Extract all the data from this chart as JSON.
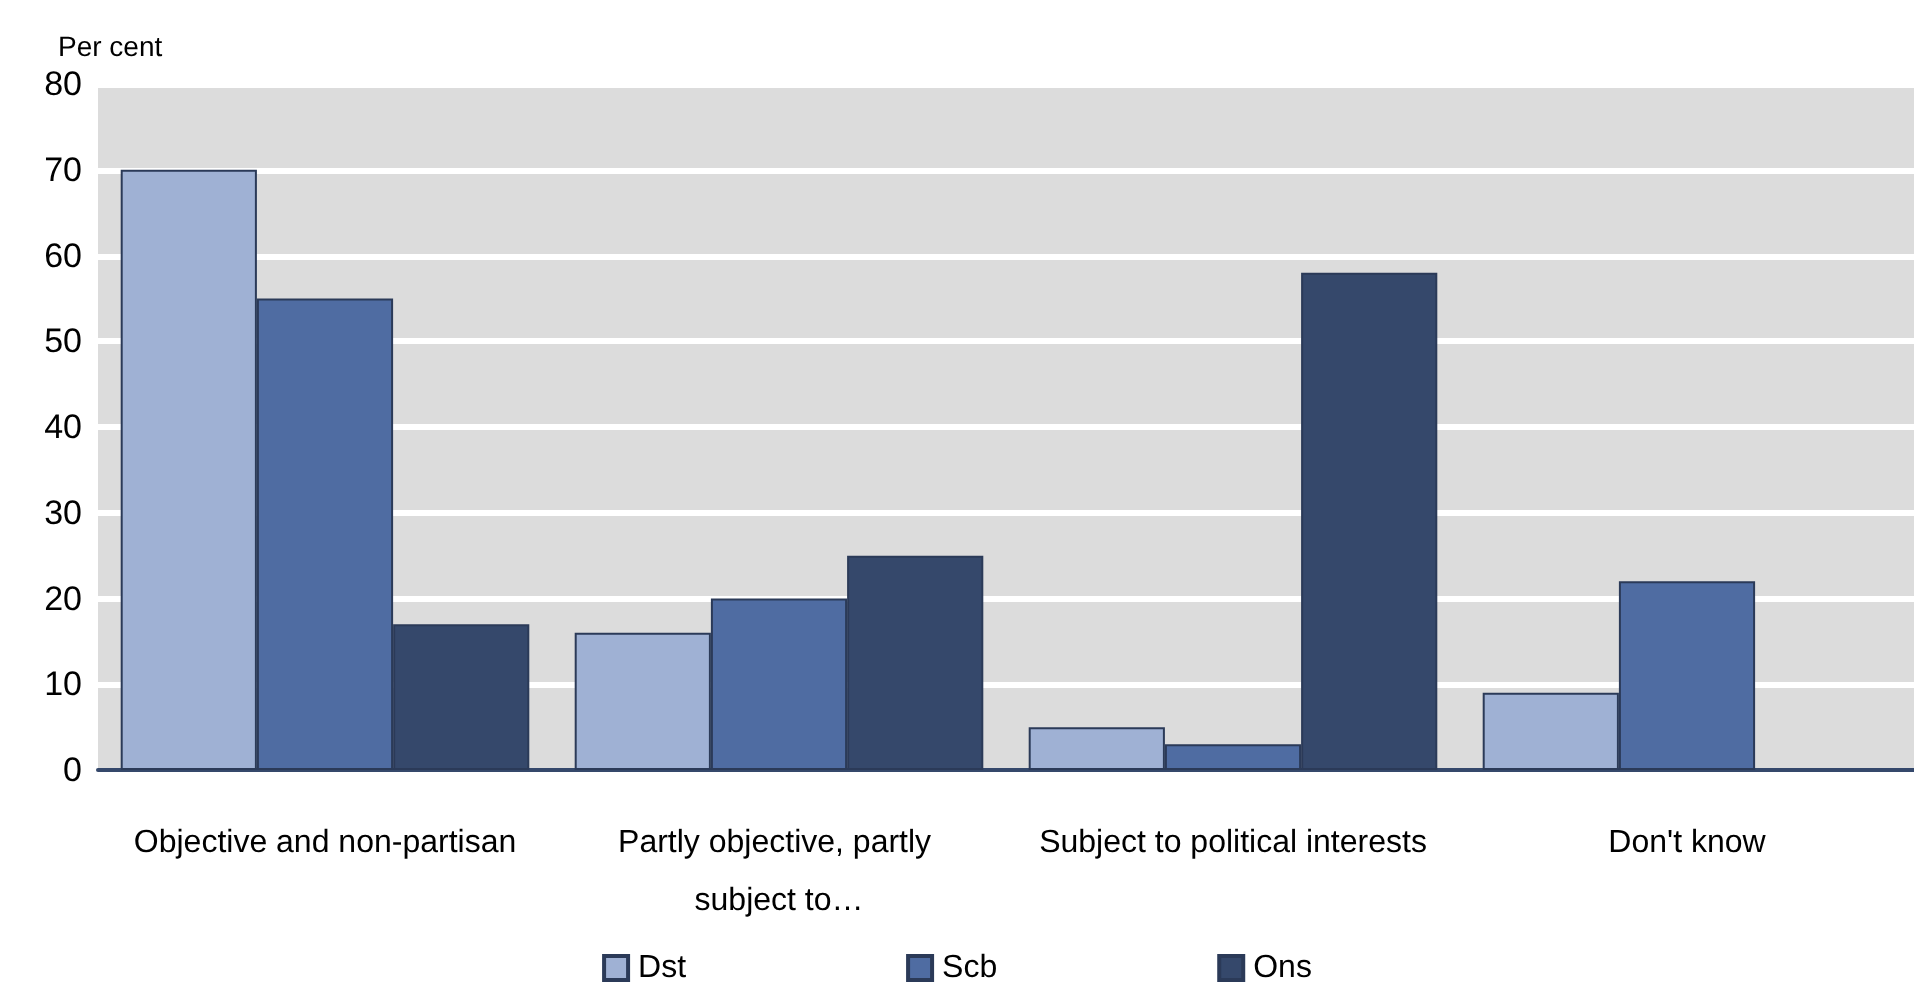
{
  "chart_data": {
    "type": "bar",
    "ylabel": "Per cent",
    "categories": [
      "Objective and non-partisan",
      "Partly objective, partly subject to…",
      "Subject to political interests",
      "Don't know"
    ],
    "series": [
      {
        "name": "Dst",
        "color": "#9fb1d4",
        "values": [
          70,
          16,
          5,
          9
        ]
      },
      {
        "name": "Scb",
        "color": "#4f6ca2",
        "values": [
          55,
          20,
          3,
          22
        ]
      },
      {
        "name": "Ons",
        "color": "#35486b",
        "values": [
          17,
          25,
          58,
          null
        ]
      }
    ],
    "ylim": [
      0,
      80
    ],
    "yticks": [
      0,
      10,
      20,
      30,
      40,
      50,
      60,
      70,
      80
    ],
    "grid": "y",
    "legend": "bottom"
  }
}
